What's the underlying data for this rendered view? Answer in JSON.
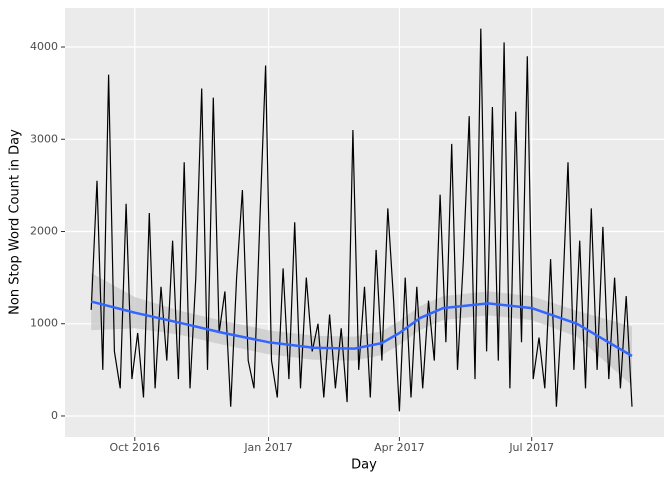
{
  "chart_data": {
    "type": "line",
    "x_label": "Day",
    "y_label": "Non Stop Word Count in Day",
    "x": [
      "2016-09-01",
      "2016-09-05",
      "2016-09-09",
      "2016-09-13",
      "2016-09-17",
      "2016-09-21",
      "2016-09-25",
      "2016-09-29",
      "2016-10-03",
      "2016-10-07",
      "2016-10-11",
      "2016-10-15",
      "2016-10-19",
      "2016-10-23",
      "2016-10-27",
      "2016-10-31",
      "2016-11-04",
      "2016-11-08",
      "2016-11-12",
      "2016-11-16",
      "2016-11-20",
      "2016-11-24",
      "2016-11-28",
      "2016-12-02",
      "2016-12-06",
      "2016-12-10",
      "2016-12-14",
      "2016-12-18",
      "2016-12-22",
      "2016-12-26",
      "2016-12-30",
      "2017-01-03",
      "2017-01-07",
      "2017-01-11",
      "2017-01-15",
      "2017-01-19",
      "2017-01-23",
      "2017-01-27",
      "2017-01-31",
      "2017-02-04",
      "2017-02-08",
      "2017-02-12",
      "2017-02-16",
      "2017-02-20",
      "2017-02-24",
      "2017-02-28",
      "2017-03-04",
      "2017-03-08",
      "2017-03-12",
      "2017-03-16",
      "2017-03-20",
      "2017-03-24",
      "2017-03-28",
      "2017-04-01",
      "2017-04-05",
      "2017-04-09",
      "2017-04-13",
      "2017-04-17",
      "2017-04-21",
      "2017-04-25",
      "2017-04-29",
      "2017-05-03",
      "2017-05-07",
      "2017-05-11",
      "2017-05-15",
      "2017-05-19",
      "2017-05-23",
      "2017-05-27",
      "2017-05-31",
      "2017-06-04",
      "2017-06-08",
      "2017-06-12",
      "2017-06-16",
      "2017-06-20",
      "2017-06-24",
      "2017-06-28",
      "2017-07-02",
      "2017-07-06",
      "2017-07-10",
      "2017-07-14",
      "2017-07-18",
      "2017-07-22",
      "2017-07-26",
      "2017-07-30",
      "2017-08-03",
      "2017-08-07",
      "2017-08-11",
      "2017-08-15",
      "2017-08-19",
      "2017-08-23",
      "2017-08-27",
      "2017-08-31",
      "2017-09-04",
      "2017-09-08"
    ],
    "series": [
      {
        "color": "#000000",
        "values": [
          1150,
          2550,
          500,
          3700,
          700,
          300,
          2300,
          400,
          900,
          200,
          2200,
          300,
          1400,
          600,
          1900,
          400,
          2750,
          300,
          1500,
          3550,
          500,
          3450,
          900,
          1350,
          100,
          1500,
          2450,
          600,
          300,
          2100,
          3800,
          600,
          200,
          1600,
          400,
          2100,
          300,
          1500,
          700,
          1000,
          200,
          1100,
          300,
          950,
          150,
          3100,
          500,
          1400,
          200,
          1800,
          600,
          2250,
          1250,
          50,
          1500,
          200,
          1400,
          300,
          1250,
          600,
          2400,
          800,
          2950,
          500,
          1700,
          3250,
          400,
          4200,
          700,
          3350,
          600,
          4050,
          300,
          3300,
          800,
          3900,
          400,
          850,
          300,
          1700,
          100,
          1200,
          2750,
          500,
          1900,
          300,
          2250,
          500,
          2050,
          400,
          1500,
          300,
          1300,
          100
        ]
      }
    ],
    "smooth": {
      "color": "#3366ff",
      "band_color": "#c8c8c8",
      "x": [
        "2016-09-01",
        "2016-10-01",
        "2016-11-01",
        "2016-12-01",
        "2017-01-01",
        "2017-02-01",
        "2017-03-01",
        "2017-03-20",
        "2017-04-01",
        "2017-04-15",
        "2017-05-01",
        "2017-06-01",
        "2017-07-01",
        "2017-08-01",
        "2017-09-08"
      ],
      "values": [
        1240,
        1120,
        1010,
        900,
        800,
        740,
        730,
        790,
        900,
        1060,
        1170,
        1220,
        1170,
        1000,
        650
      ],
      "lower": [
        930,
        950,
        880,
        770,
        670,
        610,
        600,
        660,
        770,
        930,
        1040,
        1090,
        1040,
        860,
        330
      ],
      "upper": [
        1550,
        1290,
        1140,
        1030,
        930,
        870,
        860,
        920,
        1030,
        1190,
        1300,
        1350,
        1300,
        1140,
        970
      ]
    },
    "xlim": [
      "2016-08-14",
      "2017-09-30"
    ],
    "xticks": [
      {
        "value": "2016-10-01",
        "label": "Oct 2016"
      },
      {
        "value": "2017-01-01",
        "label": "Jan 2017"
      },
      {
        "value": "2017-04-01",
        "label": "Apr 2017"
      },
      {
        "value": "2017-07-01",
        "label": "Jul 2017"
      }
    ],
    "ylim": [
      -228,
      4423
    ],
    "yticks": [
      0,
      1000,
      2000,
      3000,
      4000
    ],
    "grid": true
  }
}
